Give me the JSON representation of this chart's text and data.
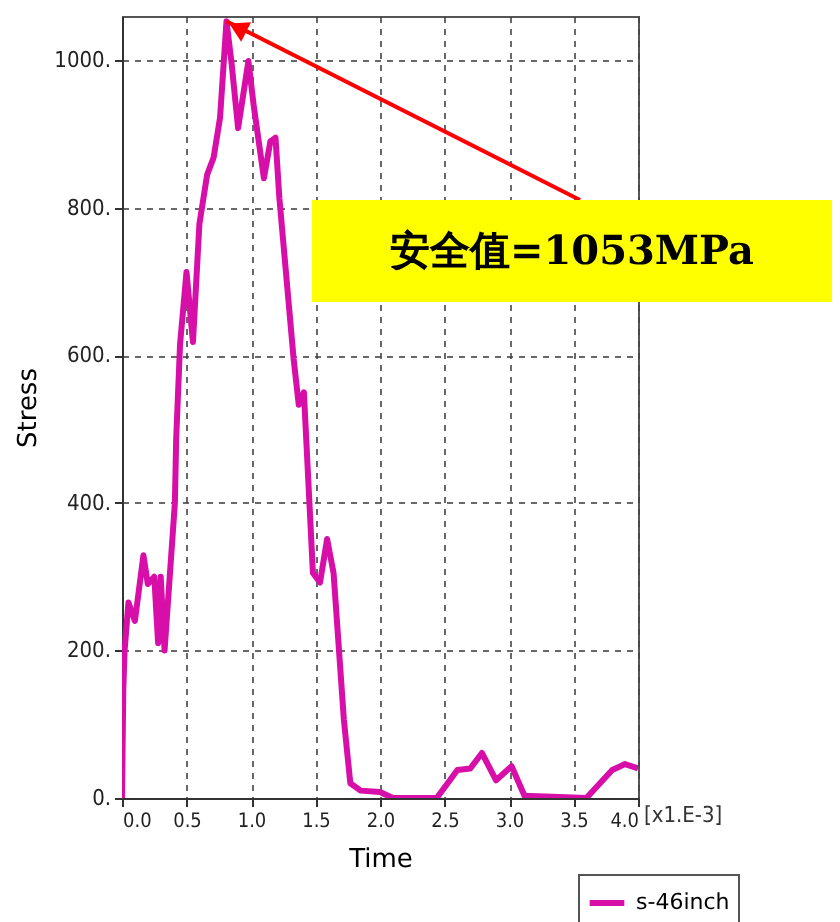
{
  "chart_data": {
    "type": "line",
    "xlabel": "Time",
    "ylabel": "Stress",
    "xlim": [
      0,
      4
    ],
    "ylim": [
      0,
      1060
    ],
    "xticks": [
      {
        "value": 0,
        "label": "0.0"
      },
      0.5,
      {
        "value": 1,
        "label": "1.0"
      },
      1.5,
      {
        "value": 2,
        "label": "2.0"
      },
      2.5,
      {
        "value": 3,
        "label": "3.0"
      },
      3.5,
      {
        "value": 4,
        "label": "4.0"
      }
    ],
    "yticks": [
      {
        "value": 0,
        "label": "0."
      },
      {
        "value": 200,
        "label": "200."
      },
      {
        "value": 400,
        "label": "400."
      },
      {
        "value": 600,
        "label": "600."
      },
      {
        "value": 800,
        "label": "800."
      },
      {
        "value": 1000,
        "label": "1000."
      }
    ],
    "grid": true,
    "legend": "bottom right",
    "line_style": "solid",
    "annotations": [
      {
        "text": "安全值=1053MPa",
        "x": 0.81,
        "y": 1053
      },
      "[x1.E-3]"
    ],
    "series": [
      {
        "name": "s-46inch",
        "color": "#d70fa8",
        "x": [
          0,
          0.01,
          0.02,
          0.05,
          0.1,
          0.166,
          0.2,
          0.25,
          0.28,
          0.3,
          0.33,
          0.37,
          0.41,
          0.42,
          0.45,
          0.5,
          0.55,
          0.6,
          0.66,
          0.71,
          0.76,
          0.81,
          0.85,
          0.9,
          0.98,
          1.02,
          1.1,
          1.15,
          1.19,
          1.22,
          1.33,
          1.37,
          1.41,
          1.48,
          1.535,
          1.59,
          1.64,
          1.72,
          1.77,
          1.85,
          2.0,
          2.1,
          2.44,
          2.6,
          2.7,
          2.79,
          2.9,
          3.02,
          3.12,
          3.6,
          3.8,
          3.9,
          4.0
        ],
        "values": [
          0,
          147,
          200,
          265,
          240,
          329,
          290,
          300,
          210,
          300,
          200,
          300,
          400,
          487,
          615,
          713,
          618,
          778,
          845,
          868,
          922,
          1053,
          995,
          908,
          999,
          940,
          840,
          890,
          895,
          813,
          596,
          533,
          550,
          305,
          292,
          351,
          305,
          106,
          20,
          10,
          8,
          0,
          0,
          38,
          40,
          61,
          24,
          43,
          3,
          0,
          38,
          46,
          40
        ]
      }
    ]
  }
}
